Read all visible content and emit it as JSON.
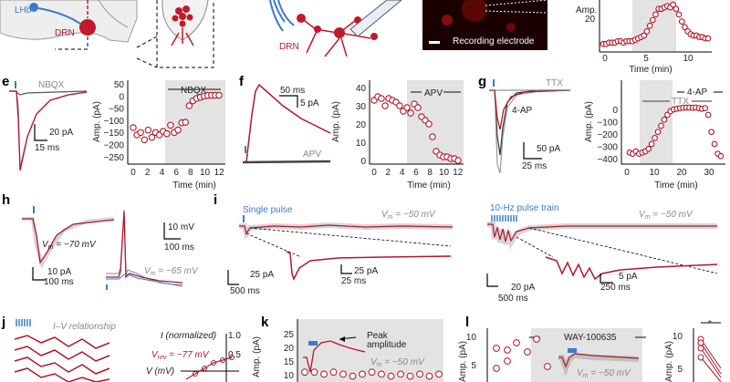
{
  "colors": {
    "red": "#b0182a",
    "blue": "#3a7bc8",
    "gray": "#9a9a9a",
    "shade": "#e3e3e3",
    "black": "#111111"
  },
  "top": {
    "lhb": "LHb",
    "drn_a": "DRN",
    "drn_b": "DRN",
    "electrode": "Recording electrode",
    "xlabel": "Time (min)",
    "ylabel": "Amp.",
    "yticks": [
      "20"
    ],
    "xticks": [
      "0",
      "5",
      "10"
    ],
    "points": [
      15,
      15,
      16,
      16,
      16,
      17,
      17,
      16,
      17,
      17,
      17,
      18,
      19,
      20,
      21,
      24,
      28,
      32,
      36,
      40,
      40,
      41,
      42,
      41,
      43,
      40,
      36,
      31,
      27,
      24,
      22,
      21,
      21,
      20,
      20,
      19,
      19
    ]
  },
  "e": {
    "label": "e",
    "drug": "NBQX",
    "drug_bar": "NBQX",
    "sb_y": "20 pA",
    "sb_x": "15 ms",
    "ylabel": "Amp. (pA)",
    "xlabel": "Time (min)",
    "yticks": [
      "50",
      "0",
      "−50",
      "−100",
      "−150",
      "−200",
      "−250"
    ],
    "xticks": [
      "0",
      "2",
      "4",
      "6",
      "8",
      "10",
      "12"
    ],
    "points": [
      -130,
      -160,
      -150,
      -180,
      -140,
      -170,
      -150,
      -160,
      -145,
      -155,
      -120,
      -150,
      -140,
      -110,
      -108,
      -40,
      -20,
      -10,
      -5,
      0,
      2,
      3,
      3,
      3
    ]
  },
  "f": {
    "label": "f",
    "drug": "APV",
    "drug_bar": "APV",
    "sb_y": "5 pA",
    "sb_x": "50 ms",
    "ylabel": "Amp. (pA)",
    "xlabel": "Time (min)",
    "yticks": [
      "0",
      "10",
      "20",
      "30",
      "40"
    ],
    "xticks": [
      "0",
      "2",
      "4",
      "6",
      "8",
      "10",
      "12"
    ],
    "points": [
      33,
      35,
      34,
      30,
      34,
      33,
      32,
      30,
      27,
      29,
      26,
      31,
      29,
      24,
      22,
      20,
      13,
      5,
      3,
      2,
      2,
      1,
      1,
      0
    ]
  },
  "g": {
    "label": "g",
    "drug_a": "TTX",
    "drug_b": "4-AP",
    "drug_c": "4-AP",
    "drug_d": "TTX",
    "sb_y": "50 pA",
    "sb_x": "25 ms",
    "ylabel": "Amp. (pA)",
    "xlabel": "Time (min)",
    "yticks": [
      "0",
      "−100",
      "−200",
      "−300",
      "−400"
    ],
    "xticks": [
      "0",
      "10",
      "20",
      "30"
    ],
    "points": [
      -370,
      -380,
      -360,
      -380,
      -370,
      -360,
      -340,
      -300,
      -250,
      -200,
      -150,
      -100,
      -60,
      -30,
      -15,
      -10,
      -5,
      -2,
      0,
      0,
      -2,
      0,
      -5,
      -10,
      -5,
      -60,
      -200,
      -300,
      -380,
      -400
    ]
  },
  "h": {
    "label": "h",
    "vm1": "V",
    "vm1_sub": "m",
    "vm1_val": " = −70 mV",
    "vm2": "V",
    "vm2_sub": "m",
    "vm2_val": " = −65 mV",
    "sb1_y": "10 pA",
    "sb1_x": "100 ms",
    "sb2_y": "10 mV",
    "sb2_x": "100 ms"
  },
  "i": {
    "label": "i",
    "single": "Single pulse",
    "train": "10-Hz pulse train",
    "vm": "V",
    "vm_sub": "m",
    "vm_val": " = −50 mV",
    "vm2": "V",
    "vm2_sub": "m",
    "vm2_val": " = −50 mV",
    "sb1_y": "25 pA",
    "sb1_x": "500 ms",
    "sb2_y": "25 pA",
    "sb2_x": "25 ms",
    "sb3_y": "20 pA",
    "sb3_x": "500 ms",
    "sb4_y": "5 pA",
    "sb4_x": "250 ms"
  },
  "j": {
    "label": "j",
    "title": "I–V relationship",
    "inorm": "I (normalized)",
    "inorm_tick": "1.0",
    "inorm_tick2": "0.5",
    "vrev": "V",
    "vrev_sub": "rev",
    "vrev_val": " = −77 mV",
    "vlabel": "V (mV)"
  },
  "k": {
    "label": "k",
    "peak": "Peak",
    "amplitude": "amplitude",
    "ylabel": "Amp. (pA)",
    "yticks": [
      "25",
      "20",
      "15",
      "10"
    ],
    "vm": "V",
    "vm_sub": "m",
    "vm_val": " = −50 mV"
  },
  "l": {
    "label": "l",
    "drug": "WAY-100635",
    "ylabel": "Amp. (pA)",
    "yticks": [
      "10",
      "5"
    ],
    "vm": "V",
    "vm_sub": "m",
    "vm_val": " = −50 mV",
    "ylabel2": "Amp. (pA)",
    "yticks2": [
      "10",
      "5"
    ],
    "star": "*"
  }
}
